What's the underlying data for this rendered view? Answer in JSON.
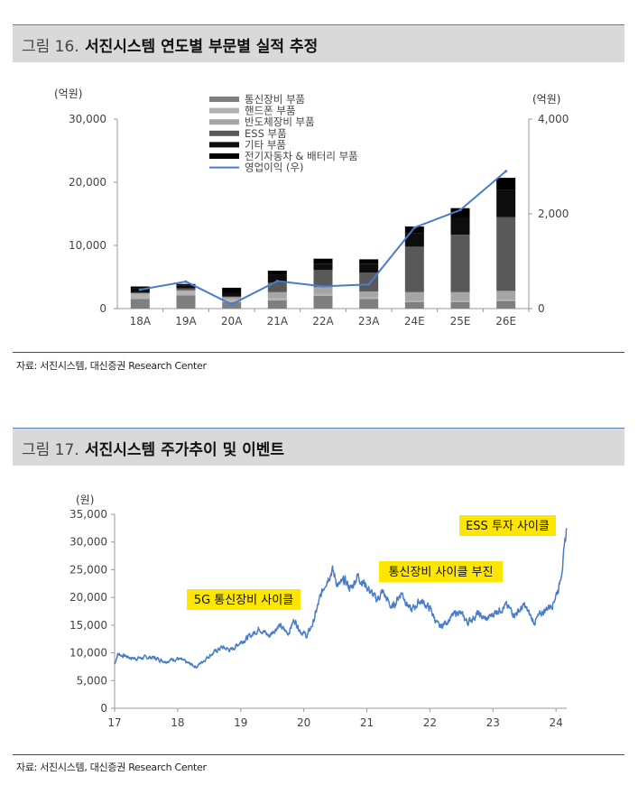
{
  "figure16": {
    "number": "그림 16.",
    "title": "서진시스템 연도별 부문별 실적 추정",
    "source": "자료: 서진시스템, 대신증권 Research Center"
  },
  "figure17": {
    "number": "그림 17.",
    "title": "서진시스템 주가추이 및 이벤트",
    "source": "자료: 서진시스템, 대신증권 Research Center"
  },
  "colors": {
    "telecom": "#7f7f7f",
    "handset": "#b3b3b3",
    "semi": "#a6a6a6",
    "ess": "#595959",
    "other": "#0d0d0d",
    "ev": "#000000",
    "line": "#4a7cc9",
    "highlight": "#ffe600"
  },
  "chart_data": [
    {
      "type": "bar",
      "stacked": true,
      "left_unit": "(억원)",
      "right_unit": "(억원)",
      "categories": [
        "18A",
        "19A",
        "20A",
        "21A",
        "22A",
        "23A",
        "24E",
        "25E",
        "26E"
      ],
      "ylim_left": [
        0,
        30000
      ],
      "yticks_left": [
        "0",
        "10,000",
        "20,000",
        "30,000"
      ],
      "ylim_right": [
        0,
        4000
      ],
      "yticks_right": [
        "0",
        "2,000",
        "4,000"
      ],
      "series": [
        {
          "name": "통신장비 부품",
          "color_key": "telecom",
          "values": [
            1500,
            2100,
            1000,
            1300,
            2000,
            1500,
            1000,
            1000,
            1200
          ]
        },
        {
          "name": "핸드폰 부품",
          "color_key": "handset",
          "values": [
            700,
            600,
            400,
            300,
            300,
            300,
            200,
            200,
            200
          ]
        },
        {
          "name": "반도체장비 부품",
          "color_key": "semi",
          "values": [
            300,
            200,
            400,
            1000,
            1100,
            900,
            1400,
            1400,
            1400
          ]
        },
        {
          "name": "ESS 부품",
          "color_key": "ess",
          "values": [
            0,
            300,
            100,
            1500,
            2700,
            3000,
            7200,
            9100,
            11700
          ]
        },
        {
          "name": "기타 부품",
          "color_key": "other",
          "values": [
            700,
            400,
            600,
            1200,
            1000,
            1400,
            2100,
            2800,
            4300
          ]
        },
        {
          "name": "전기자동차 & 배터리 부품",
          "color_key": "ev",
          "values": [
            300,
            300,
            800,
            700,
            800,
            700,
            1100,
            1400,
            1900
          ]
        }
      ],
      "line": {
        "name": "영업이익 (우)",
        "color_key": "line",
        "values": [
          400,
          570,
          90,
          580,
          470,
          510,
          1710,
          2080,
          2900
        ]
      }
    },
    {
      "type": "line",
      "unit": "(원)",
      "x_ticks": [
        "17",
        "18",
        "19",
        "20",
        "21",
        "22",
        "23",
        "24"
      ],
      "x_range": [
        17,
        24.17
      ],
      "ylim": [
        0,
        35000
      ],
      "yticks": [
        "0",
        "5,000",
        "10,000",
        "15,000",
        "20,000",
        "25,000",
        "30,000",
        "35,000"
      ],
      "anchors_x": [
        17.0,
        17.05,
        17.3,
        17.6,
        17.8,
        18.0,
        18.15,
        18.3,
        18.5,
        18.7,
        18.85,
        19.0,
        19.15,
        19.3,
        19.45,
        19.6,
        19.75,
        19.85,
        19.95,
        20.05,
        20.15,
        20.25,
        20.35,
        20.45,
        20.55,
        20.65,
        20.75,
        20.85,
        21.0,
        21.15,
        21.25,
        21.4,
        21.55,
        21.7,
        21.85,
        22.0,
        22.15,
        22.3,
        22.45,
        22.6,
        22.75,
        22.9,
        23.05,
        23.2,
        23.35,
        23.5,
        23.65,
        23.8,
        23.95,
        24.05,
        24.1,
        24.13,
        24.17
      ],
      "anchors_y": [
        8000,
        9800,
        9000,
        9200,
        8500,
        9000,
        8200,
        7500,
        9500,
        11000,
        10500,
        12000,
        13000,
        14500,
        13000,
        15000,
        13500,
        16000,
        14000,
        13000,
        15500,
        19500,
        23000,
        25000,
        22000,
        23000,
        21500,
        24000,
        22000,
        19500,
        21000,
        18000,
        21000,
        17500,
        19500,
        18000,
        14500,
        16000,
        17500,
        15500,
        17000,
        16000,
        17500,
        18500,
        17000,
        18500,
        15500,
        17500,
        19000,
        22000,
        26000,
        28000,
        32500
      ],
      "annotations": [
        "5G 통신장비 사이클",
        "통신장비 사이클 부진",
        "ESS 투자 사이클"
      ]
    }
  ]
}
